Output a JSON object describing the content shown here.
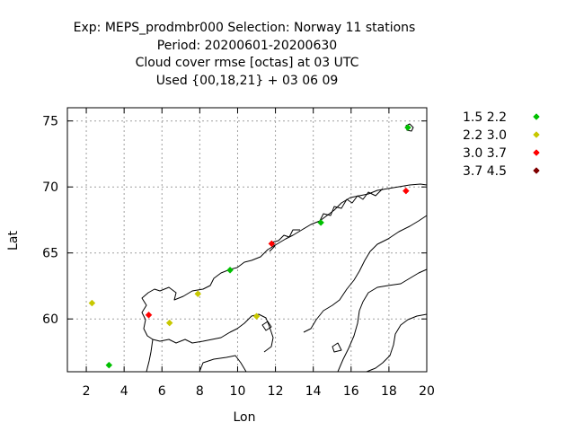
{
  "header": {
    "line1": "Exp: MEPS_prodmbr000   Selection: Norway     11 stations",
    "line2": "Period: 20200601-20200630",
    "line3": "Cloud cover rmse [octas] at  03 UTC",
    "line4": "Used {00,18,21} + 03 06 09"
  },
  "chart_data": {
    "type": "scatter",
    "xlabel": "Lon",
    "ylabel": "Lat",
    "xlim": [
      1,
      20
    ],
    "ylim": [
      56,
      76
    ],
    "xticks": [
      2,
      4,
      6,
      8,
      10,
      12,
      14,
      16,
      18,
      20
    ],
    "yticks": [
      60,
      65,
      70,
      75
    ],
    "grid": true,
    "legend_position": "right",
    "classes": [
      {
        "name": "1.5 2.2",
        "color": "#00c000"
      },
      {
        "name": "2.2 3.0",
        "color": "#c8c800"
      },
      {
        "name": "3.0 3.7",
        "color": "#ff0000"
      },
      {
        "name": "3.7 4.5",
        "color": "#800000"
      }
    ],
    "points": [
      {
        "lon": 19.0,
        "lat": 74.5,
        "class": 0
      },
      {
        "lon": 3.2,
        "lat": 56.5,
        "class": 0
      },
      {
        "lon": 9.6,
        "lat": 63.7,
        "class": 0
      },
      {
        "lon": 14.4,
        "lat": 67.3,
        "class": 0
      },
      {
        "lon": 2.3,
        "lat": 61.2,
        "class": 1
      },
      {
        "lon": 7.9,
        "lat": 61.9,
        "class": 1
      },
      {
        "lon": 6.4,
        "lat": 59.7,
        "class": 1
      },
      {
        "lon": 11.0,
        "lat": 60.2,
        "class": 1
      },
      {
        "lon": 11.8,
        "lat": 65.7,
        "class": 2
      },
      {
        "lon": 18.9,
        "lat": 69.7,
        "class": 2
      },
      {
        "lon": 5.3,
        "lat": 60.3,
        "class": 2
      }
    ]
  }
}
